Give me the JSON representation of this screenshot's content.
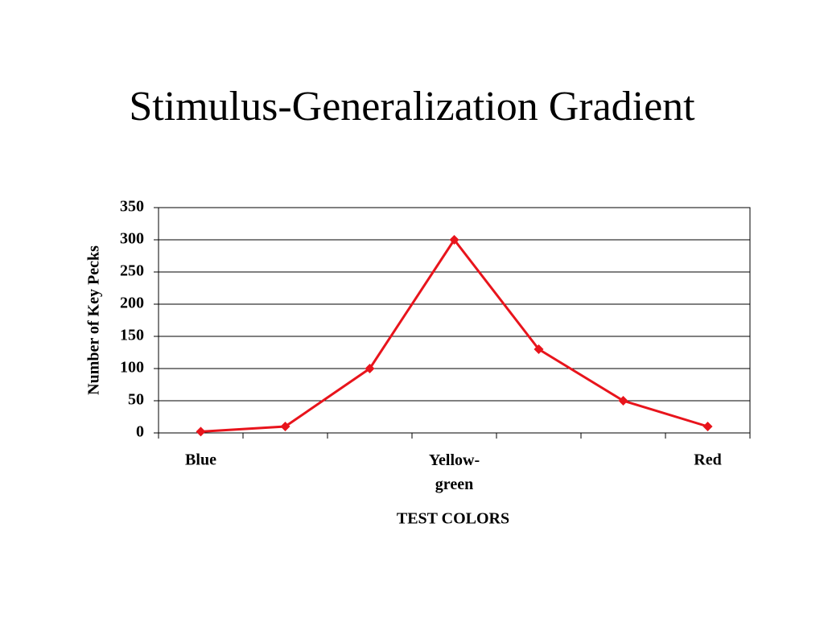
{
  "chart_data": {
    "type": "line",
    "title": "Stimulus-Generalization Gradient",
    "x_label": "TEST COLORS",
    "y_label": "Number of Key Pecks",
    "categories": [
      "Blue",
      null,
      null,
      "Yellow-\ngreen",
      null,
      null,
      "Red"
    ],
    "series": [
      {
        "name": "Key pecks",
        "color": "#e8141c",
        "values": [
          2,
          10,
          100,
          300,
          130,
          50,
          10
        ]
      }
    ],
    "ylim": [
      0,
      350
    ],
    "yticks": [
      0,
      50,
      100,
      150,
      200,
      250,
      300,
      350
    ],
    "grid": true
  }
}
